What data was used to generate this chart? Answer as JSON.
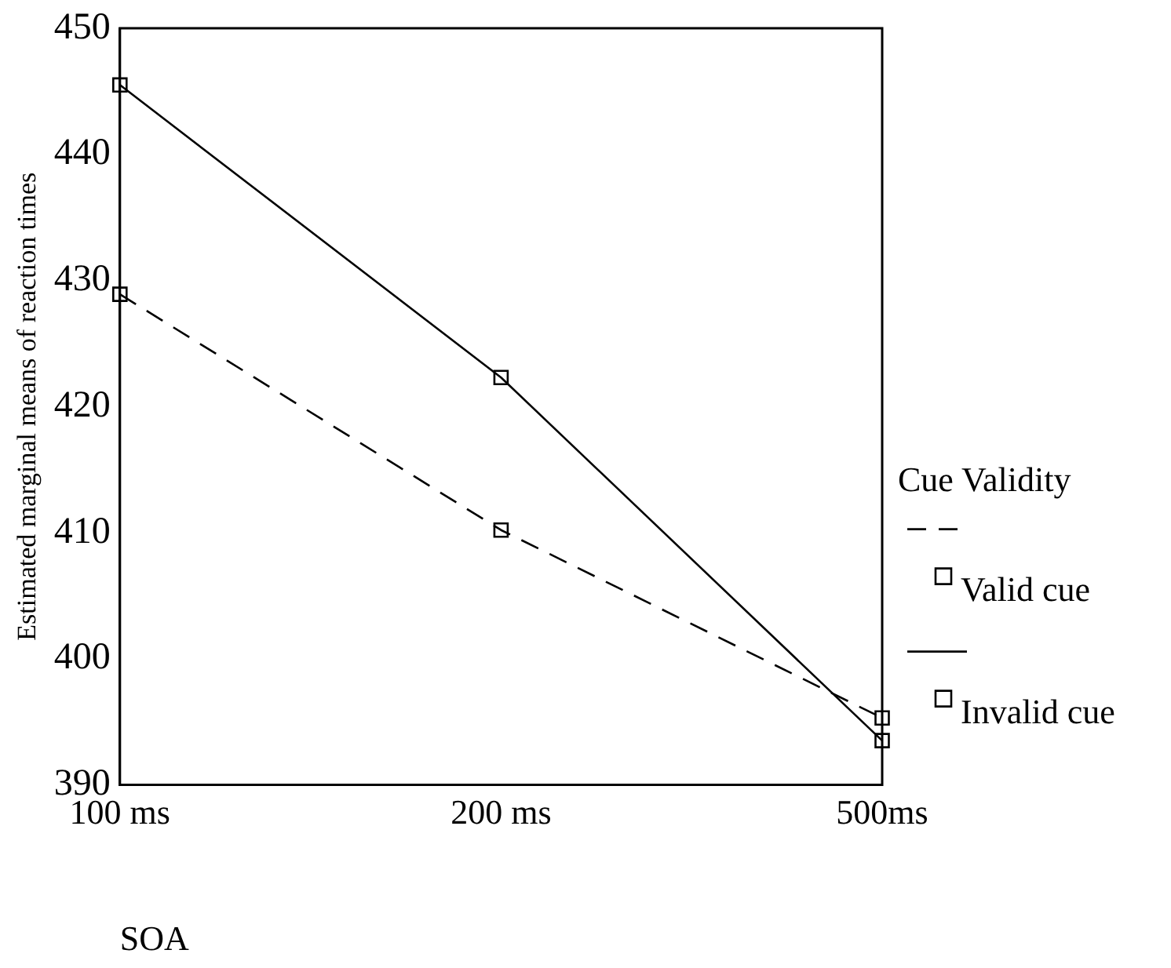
{
  "chart_data": {
    "type": "line",
    "xlabel": "SOA",
    "ylabel": "Estimated marginal means of reaction times",
    "legend_title": "Cue Validity",
    "categories": [
      "100 ms",
      "200 ms",
      "500ms"
    ],
    "series": [
      {
        "name": "Valid cue",
        "color": "#000000",
        "line_style": "dashed",
        "values": [
          428.9,
          410.2,
          395.3
        ]
      },
      {
        "name": "Invalid cue",
        "color": "#000000",
        "line_style": "solid",
        "values": [
          445.5,
          422.3,
          393.5
        ]
      }
    ],
    "ylim": [
      390,
      450
    ],
    "yticks": [
      390,
      400,
      410,
      420,
      430,
      440,
      450
    ],
    "grid": false,
    "legend": "right",
    "marker": "square"
  }
}
